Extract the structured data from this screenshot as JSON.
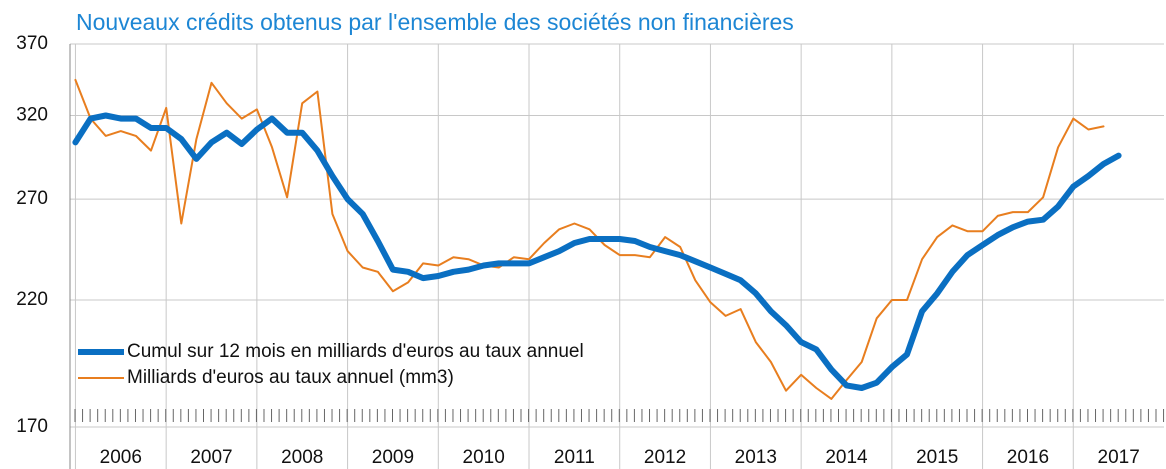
{
  "chart_data": {
    "type": "line",
    "title": "Nouveaux crédits obtenus par l'ensemble des sociétés non financières",
    "x": [
      2006,
      2006.167,
      2006.333,
      2006.5,
      2006.667,
      2006.833,
      2007,
      2007.167,
      2007.333,
      2007.5,
      2007.667,
      2007.833,
      2008,
      2008.167,
      2008.333,
      2008.5,
      2008.667,
      2008.833,
      2009,
      2009.167,
      2009.333,
      2009.5,
      2009.667,
      2009.833,
      2010,
      2010.167,
      2010.333,
      2010.5,
      2010.667,
      2010.833,
      2011,
      2011.167,
      2011.333,
      2011.5,
      2011.667,
      2011.833,
      2012,
      2012.167,
      2012.333,
      2012.5,
      2012.667,
      2012.833,
      2013,
      2013.167,
      2013.333,
      2013.5,
      2013.667,
      2013.833,
      2014,
      2014.167,
      2014.333,
      2014.5,
      2014.667,
      2014.833,
      2015,
      2015.167,
      2015.333,
      2015.5,
      2015.667,
      2015.833,
      2016,
      2016.167,
      2016.333,
      2016.5,
      2016.667,
      2016.833,
      2017,
      2017.167,
      2017.333,
      2017.5
    ],
    "series": [
      {
        "name": "Cumul sur 12 mois en milliards d'euros au taux annuel",
        "color": "#0a6fc2",
        "values": [
          303,
          318,
          320,
          318,
          318,
          312,
          312,
          305,
          293,
          303,
          309,
          302,
          311,
          318,
          309,
          309,
          298,
          283,
          270,
          262,
          248,
          234,
          233,
          230,
          231,
          233,
          234,
          236,
          237,
          237,
          237,
          240,
          243,
          247,
          249,
          249,
          249,
          248,
          245,
          243,
          241,
          238,
          235,
          232,
          229,
          223,
          215,
          209,
          202,
          199,
          191,
          185,
          184,
          186,
          192,
          197,
          215,
          223,
          233,
          241,
          246,
          251,
          255,
          258,
          259,
          266,
          277,
          283,
          290,
          295
        ]
      },
      {
        "name": "Milliards d'euros au taux annuel (mm3)",
        "color": "#e87e1f",
        "values": [
          344,
          318,
          307,
          310,
          307,
          298,
          325,
          257,
          305,
          342,
          328,
          318,
          324,
          300,
          271,
          328,
          336,
          262,
          243,
          235,
          233,
          224,
          228,
          237,
          236,
          240,
          239,
          236,
          235,
          240,
          239,
          247,
          254,
          257,
          254,
          246,
          241,
          241,
          240,
          250,
          245,
          229,
          219,
          213,
          216,
          202,
          194,
          183,
          189,
          184,
          180,
          187,
          194,
          212,
          220,
          220,
          239,
          250,
          256,
          253,
          253,
          261,
          263,
          263,
          271,
          300,
          318,
          311,
          313,
          null
        ]
      }
    ],
    "xlim": [
      2005.94,
      2018
    ],
    "xticks": [
      2006,
      2007,
      2008,
      2009,
      2010,
      2011,
      2012,
      2013,
      2014,
      2015,
      2016,
      2017
    ],
    "ylim": [
      170,
      370
    ],
    "yticks": [
      170,
      220,
      270,
      320,
      370
    ],
    "ylog": true,
    "grid": true,
    "legend": "lower left"
  }
}
